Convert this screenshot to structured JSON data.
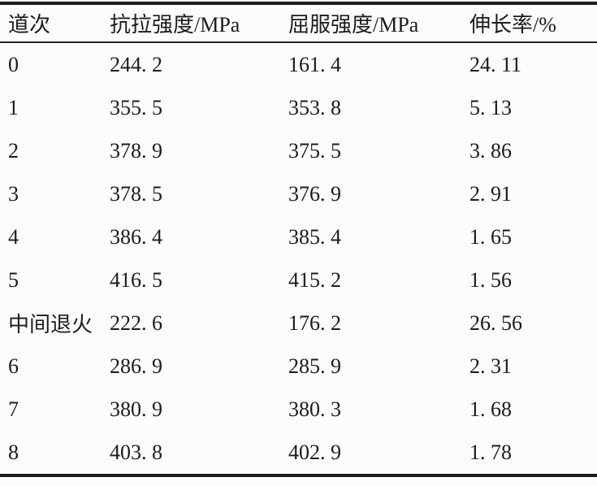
{
  "table": {
    "title_semantic": "mechanical-properties-by-pass",
    "headers": [
      "道次",
      "抗拉强度/MPa",
      "屈服强度/MPa",
      "伸长率/%"
    ],
    "rows": [
      [
        "0",
        "244. 2",
        "161. 4",
        "24. 11"
      ],
      [
        "1",
        "355. 5",
        "353. 8",
        "5. 13"
      ],
      [
        "2",
        "378. 9",
        "375. 5",
        "3. 86"
      ],
      [
        "3",
        "378. 5",
        "376. 9",
        "2. 91"
      ],
      [
        "4",
        "386. 4",
        "385. 4",
        "1. 65"
      ],
      [
        "5",
        "416. 5",
        "415. 2",
        "1. 56"
      ],
      [
        "中间退火",
        "222. 6",
        "176. 2",
        "26. 56"
      ],
      [
        "6",
        "286. 9",
        "285. 9",
        "2. 31"
      ],
      [
        "7",
        "380. 9",
        "380. 3",
        "1. 68"
      ],
      [
        "8",
        "403. 8",
        "402. 9",
        "1. 78"
      ]
    ]
  },
  "chart_data": {
    "type": "table",
    "columns": [
      "道次",
      "抗拉强度/MPa",
      "屈服强度/MPa",
      "伸长率/%"
    ],
    "records": [
      {
        "道次": "0",
        "抗拉强度/MPa": 244.2,
        "屈服强度/MPa": 161.4,
        "伸长率/%": 24.11
      },
      {
        "道次": "1",
        "抗拉强度/MPa": 355.5,
        "屈服强度/MPa": 353.8,
        "伸长率/%": 5.13
      },
      {
        "道次": "2",
        "抗拉强度/MPa": 378.9,
        "屈服强度/MPa": 375.5,
        "伸长率/%": 3.86
      },
      {
        "道次": "3",
        "抗拉强度/MPa": 378.5,
        "屈服强度/MPa": 376.9,
        "伸长率/%": 2.91
      },
      {
        "道次": "4",
        "抗拉强度/MPa": 386.4,
        "屈服强度/MPa": 385.4,
        "伸长率/%": 1.65
      },
      {
        "道次": "5",
        "抗拉强度/MPa": 416.5,
        "屈服强度/MPa": 415.2,
        "伸长率/%": 1.56
      },
      {
        "道次": "中间退火",
        "抗拉强度/MPa": 222.6,
        "屈服强度/MPa": 176.2,
        "伸长率/%": 26.56
      },
      {
        "道次": "6",
        "抗拉强度/MPa": 286.9,
        "屈服强度/MPa": 285.9,
        "伸长率/%": 2.31
      },
      {
        "道次": "7",
        "抗拉强度/MPa": 380.9,
        "屈服强度/MPa": 380.3,
        "伸长率/%": 1.68
      },
      {
        "道次": "8",
        "抗拉强度/MPa": 403.8,
        "屈服强度/MPa": 402.9,
        "伸长率/%": 1.78
      }
    ]
  },
  "colors": {
    "text": "#1b1b1b",
    "rule_heavy": "#1e1e1e",
    "rule_light": "#222222",
    "background": "#fcfcfc"
  }
}
